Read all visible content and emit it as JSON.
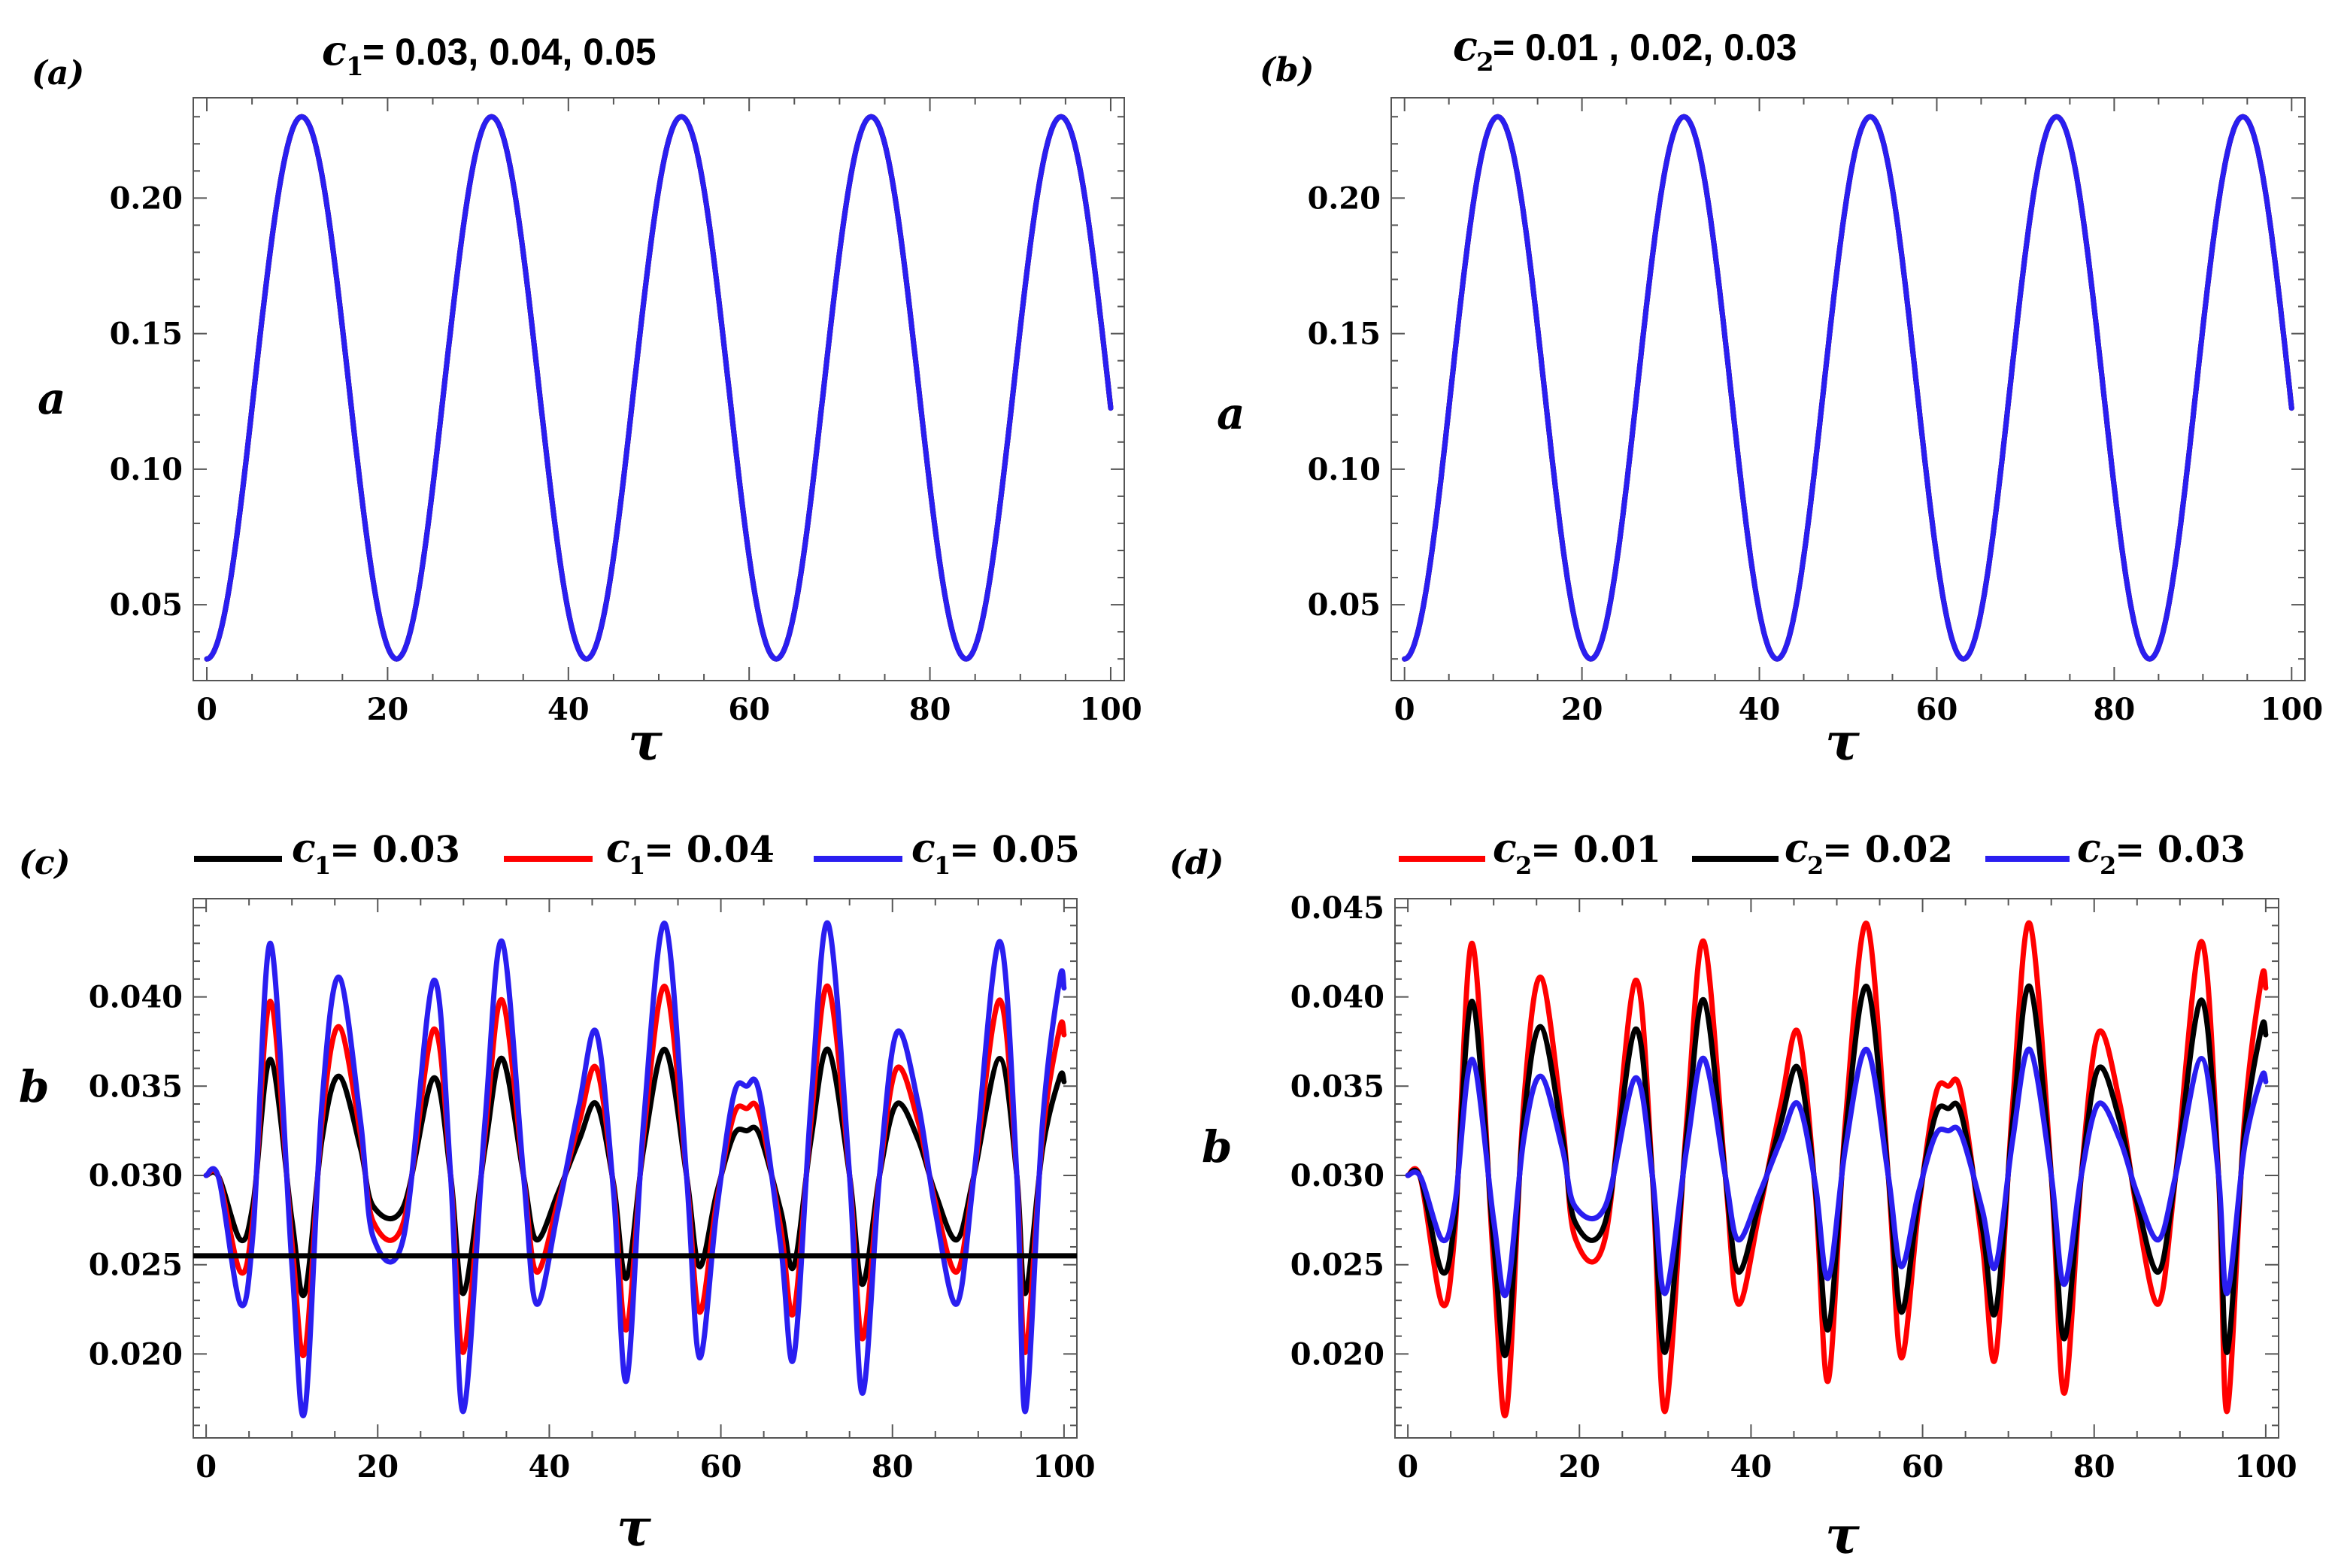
{
  "chart_data": [
    {
      "panel": "(a)",
      "type": "line",
      "title_var": "c",
      "title_sub": "1",
      "title_values": "= 0.03, 0.04, 0.05",
      "xlabel": "τ",
      "ylabel": "a",
      "xlim": [
        -1.5,
        101.5
      ],
      "ylim": [
        0.022,
        0.237
      ],
      "xticks": [
        "0",
        "20",
        "40",
        "60",
        "80",
        "100"
      ],
      "yticks": [
        "0.05",
        "0.10",
        "0.15",
        "0.20"
      ],
      "series": [
        {
          "name": "c1 = 0.03",
          "color": "#ff0000",
          "a_min": 0.03,
          "a_max": 0.23,
          "period": 21,
          "x_start": 0,
          "x_end": 100
        },
        {
          "name": "c1 = 0.04",
          "color": "#000000",
          "a_min": 0.03,
          "a_max": 0.23,
          "period": 21,
          "x_start": 0,
          "x_end": 100
        },
        {
          "name": "c1 = 0.05",
          "color": "#2a1ef0",
          "a_min": 0.03,
          "a_max": 0.23,
          "period": 21,
          "x_start": 0,
          "x_end": 100
        }
      ]
    },
    {
      "panel": "(b)",
      "type": "line",
      "title_var": "c",
      "title_sub": "2",
      "title_values": "= 0.01 , 0.02, 0.03",
      "xlabel": "τ",
      "ylabel": "a",
      "xlim": [
        -1.5,
        101.5
      ],
      "ylim": [
        0.022,
        0.237
      ],
      "xticks": [
        "0",
        "20",
        "40",
        "60",
        "80",
        "100"
      ],
      "yticks": [
        "0.05",
        "0.10",
        "0.15",
        "0.20"
      ],
      "series": [
        {
          "name": "c2 = 0.01",
          "color": "#ff0000",
          "a_min": 0.03,
          "a_max": 0.23,
          "period": 21,
          "x_start": 0,
          "x_end": 100
        },
        {
          "name": "c2 = 0.02",
          "color": "#000000",
          "a_min": 0.03,
          "a_max": 0.23,
          "period": 21,
          "x_start": 0,
          "x_end": 100
        },
        {
          "name": "c2 = 0.03",
          "color": "#2a1ef0",
          "a_min": 0.03,
          "a_max": 0.23,
          "period": 21,
          "x_start": 0,
          "x_end": 100
        }
      ]
    },
    {
      "panel": "(c)",
      "type": "line",
      "xlabel": "τ",
      "ylabel": "b",
      "xlim": [
        -1.5,
        101.5
      ],
      "ylim": [
        0.0153,
        0.0455
      ],
      "xticks": [
        "0",
        "20",
        "40",
        "60",
        "80",
        "100"
      ],
      "yticks": [
        "0.020",
        "0.025",
        "0.030",
        "0.035",
        "0.040"
      ],
      "reference_line": 0.0255,
      "legend": [
        {
          "var": "c",
          "sub": "1",
          "label": "= 0.03",
          "color": "#000000"
        },
        {
          "var": "c",
          "sub": "1",
          "label": "= 0.04",
          "color": "#ff0000"
        },
        {
          "var": "c",
          "sub": "1",
          "label": "= 0.05",
          "color": "#2a1ef0"
        }
      ],
      "series": [
        {
          "name": "c1 = 0.03",
          "color": "#000000",
          "scale": 0.5
        },
        {
          "name": "c1 = 0.04",
          "color": "#ff0000",
          "scale": 0.75
        },
        {
          "name": "c1 = 0.05",
          "color": "#2a1ef0",
          "scale": 1.0
        }
      ],
      "points": [
        [
          0,
          0.03
        ],
        [
          1.5,
          0.0298
        ],
        [
          4,
          0.0228
        ],
        [
          5.5,
          0.027
        ],
        [
          7.5,
          0.043
        ],
        [
          10,
          0.025
        ],
        [
          11.5,
          0.0168
        ],
        [
          13.5,
          0.034
        ],
        [
          15.5,
          0.0411
        ],
        [
          18,
          0.033
        ],
        [
          19.5,
          0.0265
        ],
        [
          23,
          0.0265
        ],
        [
          26.5,
          0.0409
        ],
        [
          28.5,
          0.03
        ],
        [
          30,
          0.0168
        ],
        [
          32.5,
          0.033
        ],
        [
          34.5,
          0.0431
        ],
        [
          37,
          0.03
        ],
        [
          38.5,
          0.0228
        ],
        [
          41,
          0.028
        ],
        [
          43.5,
          0.034
        ],
        [
          45.5,
          0.038
        ],
        [
          47.5,
          0.029
        ],
        [
          49,
          0.0185
        ],
        [
          51,
          0.033
        ],
        [
          53.5,
          0.0441
        ],
        [
          56,
          0.03
        ],
        [
          57.5,
          0.0198
        ],
        [
          59.5,
          0.028
        ],
        [
          61.5,
          0.0345
        ],
        [
          63,
          0.035
        ],
        [
          64.5,
          0.0346
        ],
        [
          67,
          0.026
        ],
        [
          68.5,
          0.0198
        ],
        [
          70.5,
          0.034
        ],
        [
          72.5,
          0.0441
        ],
        [
          75,
          0.03
        ],
        [
          76.5,
          0.0178
        ],
        [
          78.5,
          0.03
        ],
        [
          80.5,
          0.038
        ],
        [
          83,
          0.034
        ],
        [
          85,
          0.028
        ],
        [
          87.5,
          0.0228
        ],
        [
          89.5,
          0.03
        ],
        [
          92.5,
          0.0431
        ],
        [
          94.5,
          0.03
        ],
        [
          95.5,
          0.0168
        ],
        [
          97.5,
          0.033
        ],
        [
          99.5,
          0.041
        ],
        [
          100,
          0.0405
        ]
      ]
    },
    {
      "panel": "(d)",
      "type": "line",
      "xlabel": "τ",
      "ylabel": "b",
      "xlim": [
        -1.5,
        101.5
      ],
      "ylim": [
        0.0153,
        0.0455
      ],
      "xticks": [
        "0",
        "20",
        "40",
        "60",
        "80",
        "100"
      ],
      "yticks": [
        "0.020",
        "0.025",
        "0.030",
        "0.035",
        "0.040",
        "0.045"
      ],
      "legend": [
        {
          "var": "c",
          "sub": "2",
          "label": "= 0.01",
          "color": "#ff0000"
        },
        {
          "var": "c",
          "sub": "2",
          "label": "= 0.02",
          "color": "#000000"
        },
        {
          "var": "c",
          "sub": "2",
          "label": "= 0.03",
          "color": "#2a1ef0"
        }
      ],
      "series": [
        {
          "name": "c2 = 0.01",
          "color": "#ff0000",
          "scale": 1.0
        },
        {
          "name": "c2 = 0.02",
          "color": "#000000",
          "scale": 0.75
        },
        {
          "name": "c2 = 0.03",
          "color": "#2a1ef0",
          "scale": 0.5
        }
      ],
      "points": [
        [
          0,
          0.03
        ],
        [
          1.5,
          0.0298
        ],
        [
          4,
          0.0228
        ],
        [
          5.5,
          0.027
        ],
        [
          7.5,
          0.043
        ],
        [
          10,
          0.025
        ],
        [
          11.5,
          0.0168
        ],
        [
          13.5,
          0.034
        ],
        [
          15.5,
          0.0411
        ],
        [
          18,
          0.033
        ],
        [
          19.5,
          0.0265
        ],
        [
          23,
          0.0265
        ],
        [
          26.5,
          0.0409
        ],
        [
          28.5,
          0.03
        ],
        [
          30,
          0.0168
        ],
        [
          32.5,
          0.033
        ],
        [
          34.5,
          0.0431
        ],
        [
          37,
          0.03
        ],
        [
          38.5,
          0.0228
        ],
        [
          41,
          0.028
        ],
        [
          43.5,
          0.034
        ],
        [
          45.5,
          0.038
        ],
        [
          47.5,
          0.029
        ],
        [
          49,
          0.0185
        ],
        [
          51,
          0.033
        ],
        [
          53.5,
          0.0441
        ],
        [
          56,
          0.03
        ],
        [
          57.5,
          0.0198
        ],
        [
          59.5,
          0.028
        ],
        [
          61.5,
          0.0345
        ],
        [
          63,
          0.035
        ],
        [
          64.5,
          0.0346
        ],
        [
          67,
          0.026
        ],
        [
          68.5,
          0.0198
        ],
        [
          70.5,
          0.034
        ],
        [
          72.5,
          0.0441
        ],
        [
          75,
          0.03
        ],
        [
          76.5,
          0.0178
        ],
        [
          78.5,
          0.03
        ],
        [
          80.5,
          0.038
        ],
        [
          83,
          0.034
        ],
        [
          85,
          0.028
        ],
        [
          87.5,
          0.0228
        ],
        [
          89.5,
          0.03
        ],
        [
          92.5,
          0.0431
        ],
        [
          94.5,
          0.03
        ],
        [
          95.5,
          0.0168
        ],
        [
          97.5,
          0.033
        ],
        [
          99.5,
          0.041
        ],
        [
          100,
          0.0405
        ]
      ]
    }
  ]
}
